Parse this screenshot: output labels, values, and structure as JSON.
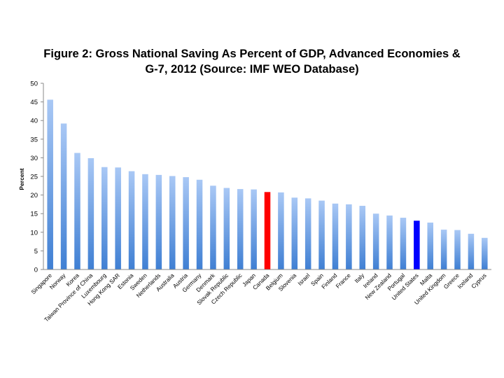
{
  "chart_data": {
    "type": "bar",
    "title_line1": "Figure 2: Gross National Saving As Percent of GDP, Advanced Economies &",
    "title_line2": "G-7, 2012 (Source: IMF WEO Database)",
    "xlabel": "",
    "ylabel": "Percent",
    "ylim": [
      0,
      50
    ],
    "yticks": [
      "0",
      "5",
      "10",
      "15",
      "20",
      "25",
      "30",
      "35",
      "40",
      "45",
      "50"
    ],
    "grid": false,
    "categories": [
      "Singapore",
      "Norway",
      "Korea",
      "Taiwan Province of China",
      "Luxembourg",
      "Hong Kong SAR",
      "Estonia",
      "Sweden",
      "Netherlands",
      "Australia",
      "Austria",
      "Germany",
      "Denmark",
      "Slovak Republic",
      "Czech Republic",
      "Japan",
      "Canada",
      "Belgium",
      "Slovenia",
      "Israel",
      "Spain",
      "Finland",
      "France",
      "Italy",
      "Ireland",
      "New Zealand",
      "Portugal",
      "United States",
      "Malta",
      "United Kingdom",
      "Greece",
      "Iceland",
      "Cyprus"
    ],
    "values": [
      45.6,
      39.2,
      31.3,
      29.9,
      27.5,
      27.4,
      26.4,
      25.6,
      25.4,
      25.1,
      24.8,
      24.1,
      22.5,
      21.9,
      21.6,
      21.5,
      20.8,
      20.7,
      19.3,
      19.1,
      18.5,
      17.7,
      17.5,
      17.1,
      15.0,
      14.5,
      13.9,
      13.1,
      12.6,
      10.7,
      10.6,
      9.6,
      8.5
    ],
    "highlight": {
      "Canada": "#ff0000",
      "United States": "#0000ff"
    },
    "default_gradient": [
      "#a9c8f5",
      "#3f7fd3"
    ]
  }
}
